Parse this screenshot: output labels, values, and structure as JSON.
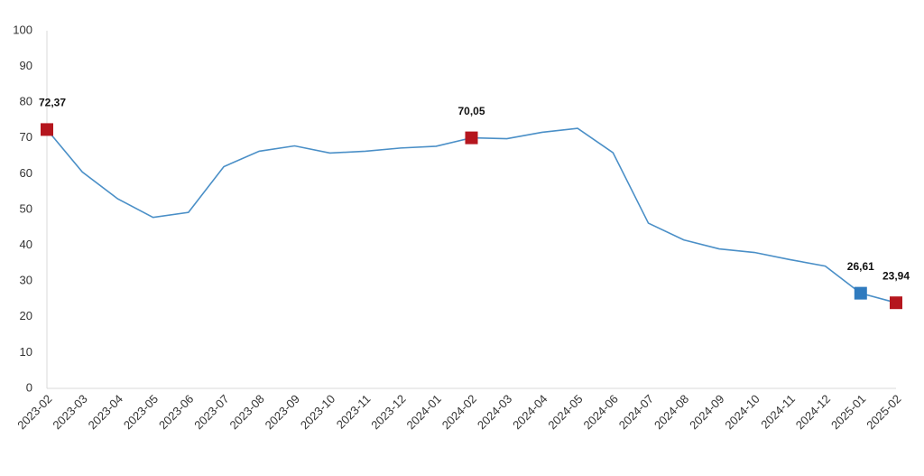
{
  "chart_data": {
    "type": "line",
    "categories": [
      "2023-02",
      "2023-03",
      "2023-04",
      "2023-05",
      "2023-06",
      "2023-07",
      "2023-08",
      "2023-09",
      "2023-10",
      "2023-11",
      "2023-12",
      "2024-01",
      "2024-02",
      "2024-03",
      "2024-04",
      "2024-05",
      "2024-06",
      "2024-07",
      "2024-08",
      "2024-09",
      "2024-10",
      "2024-11",
      "2024-12",
      "2025-01",
      "2025-02"
    ],
    "series": [
      {
        "color": "#4a8fc7",
        "values": [
          72.37,
          60.5,
          53,
          47.8,
          49.2,
          62,
          66.3,
          67.8,
          65.8,
          66.3,
          67.2,
          67.7,
          70.05,
          69.8,
          71.6,
          72.7,
          65.9,
          46.2,
          41.5,
          39,
          38,
          36,
          34.2,
          26.61,
          23.94
        ],
        "value_labels": [
          "72,37",
          null,
          null,
          null,
          null,
          null,
          null,
          null,
          null,
          null,
          null,
          null,
          "70,05",
          null,
          null,
          null,
          null,
          null,
          null,
          null,
          null,
          null,
          null,
          "26,61",
          "23,94"
        ],
        "marker_colors": [
          "#b5161e",
          null,
          null,
          null,
          null,
          null,
          null,
          null,
          null,
          null,
          null,
          null,
          "#b5161e",
          null,
          null,
          null,
          null,
          null,
          null,
          null,
          null,
          null,
          null,
          "#2f7bbf",
          "#b5161e"
        ]
      }
    ],
    "ylim": [
      0,
      100
    ],
    "yticks": [
      0,
      10,
      20,
      30,
      40,
      50,
      60,
      70,
      80,
      90,
      100
    ],
    "grid": false
  }
}
